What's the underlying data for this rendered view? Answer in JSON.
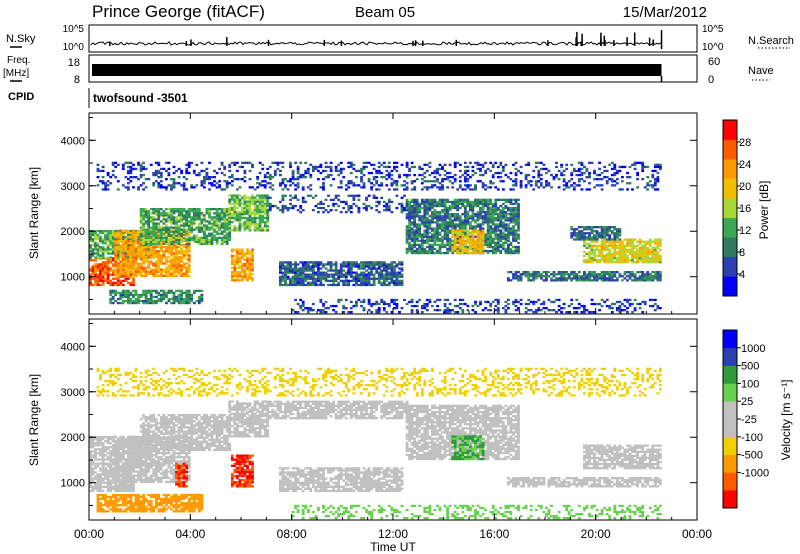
{
  "header": {
    "station": "Prince George (fitACF)",
    "beam": "Beam 05",
    "date": "15/Mar/2012"
  },
  "aux_panels": {
    "nsky": {
      "label": "N.Sky",
      "ticks": [
        "10^5",
        "10^0"
      ]
    },
    "nsearch": {
      "label": "N.Search",
      "ticks": [
        "10^5",
        "10^0"
      ]
    },
    "freq": {
      "label_top": "Freq.",
      "label_bottom": "[MHz]",
      "ticks": [
        "18",
        "8"
      ]
    },
    "nave": {
      "label": "Nave",
      "ticks": [
        "60",
        "0"
      ]
    },
    "cpid": {
      "label": "CPID",
      "value": "twofsound -3501"
    }
  },
  "colors": {
    "power_scale": [
      "#0000ff",
      "#2a3fb0",
      "#2f7a60",
      "#3aa853",
      "#a9d83a",
      "#f0c000",
      "#ff9a00",
      "#ff5a00",
      "#ff0000"
    ],
    "velocity_scale": [
      "#ff0000",
      "#ff5a00",
      "#ff9a00",
      "#f0d000",
      "#c0c0c0",
      "#c0c0c0",
      "#6ad050",
      "#2f9a3a",
      "#2a3fb0",
      "#0000ff"
    ]
  },
  "chart_data": [
    {
      "type": "heatmap",
      "name": "power",
      "xlabel": "",
      "ylabel": "Slant Range [km]",
      "xlim": [
        0,
        24
      ],
      "ylim": [
        180,
        4600
      ],
      "x_ticks": [
        "00:00",
        "04:00",
        "08:00",
        "12:00",
        "16:00",
        "20:00",
        "00:00"
      ],
      "y_ticks": [
        1000,
        2000,
        3000,
        4000
      ],
      "colorbar": {
        "label": "Power [dB]",
        "range": [
          0,
          32
        ],
        "ticks": [
          4,
          8,
          12,
          16,
          20,
          24,
          28
        ]
      },
      "data_end_hour": 22.6,
      "echo_bands": [
        {
          "t0": 0.0,
          "t1": 1.8,
          "r0": 800,
          "r1": 1400,
          "value": 27
        },
        {
          "t0": 0.0,
          "t1": 2.5,
          "r0": 1400,
          "r1": 2000,
          "value": 12
        },
        {
          "t0": 1.0,
          "t1": 4.0,
          "r0": 1000,
          "r1": 2000,
          "value": 22
        },
        {
          "t0": 0.8,
          "t1": 4.5,
          "r0": 400,
          "r1": 700,
          "value": 10
        },
        {
          "t0": 2.0,
          "t1": 5.5,
          "r0": 1700,
          "r1": 2500,
          "value": 12
        },
        {
          "t0": 5.5,
          "t1": 7.0,
          "r0": 2000,
          "r1": 2800,
          "value": 14
        },
        {
          "t0": 5.6,
          "t1": 6.4,
          "r0": 900,
          "r1": 1600,
          "value": 22
        },
        {
          "t0": 7.0,
          "t1": 12.5,
          "r0": 2400,
          "r1": 2800,
          "value": 6
        },
        {
          "t0": 7.5,
          "t1": 12.3,
          "r0": 800,
          "r1": 1300,
          "value": 7
        },
        {
          "t0": 12.5,
          "t1": 17.0,
          "r0": 1500,
          "r1": 2700,
          "value": 9
        },
        {
          "t0": 14.3,
          "t1": 15.5,
          "r0": 1500,
          "r1": 2000,
          "value": 20
        },
        {
          "t0": 16.5,
          "t1": 22.6,
          "r0": 900,
          "r1": 1100,
          "value": 8
        },
        {
          "t0": 19.5,
          "t1": 22.6,
          "r0": 1300,
          "r1": 1800,
          "value": 18
        },
        {
          "t0": 19.0,
          "t1": 21.0,
          "r0": 1800,
          "r1": 2100,
          "value": 8
        },
        {
          "t0": 8.0,
          "t1": 22.6,
          "r0": 200,
          "r1": 500,
          "value": 5
        },
        {
          "t0": 0.3,
          "t1": 22.6,
          "r0": 2900,
          "r1": 3500,
          "value": 5
        }
      ]
    },
    {
      "type": "heatmap",
      "name": "velocity",
      "xlabel": "Time UT",
      "ylabel": "Slant Range [km]",
      "xlim": [
        0,
        24
      ],
      "ylim": [
        180,
        4600
      ],
      "x_ticks": [
        "00:00",
        "04:00",
        "08:00",
        "12:00",
        "16:00",
        "20:00",
        "00:00"
      ],
      "y_ticks": [
        1000,
        2000,
        3000,
        4000
      ],
      "colorbar": {
        "label": "Velocity [m s⁻¹]",
        "tick_labels": [
          "1000",
          "500",
          "100",
          "25",
          "-25",
          "-100",
          "-500",
          "-1000"
        ]
      },
      "data_end_hour": 22.6,
      "echo_bands": [
        {
          "t0": 0.0,
          "t1": 1.8,
          "r0": 800,
          "r1": 1400,
          "value": 0
        },
        {
          "t0": 0.0,
          "t1": 2.5,
          "r0": 1400,
          "r1": 2000,
          "value": 0
        },
        {
          "t0": 1.0,
          "t1": 4.0,
          "r0": 1000,
          "r1": 2000,
          "value": 0
        },
        {
          "t0": 0.3,
          "t1": 4.5,
          "r0": 350,
          "r1": 750,
          "value": -300
        },
        {
          "t0": 2.0,
          "t1": 5.5,
          "r0": 1700,
          "r1": 2500,
          "value": 0
        },
        {
          "t0": 3.4,
          "t1": 3.9,
          "r0": 900,
          "r1": 1400,
          "value": -1000
        },
        {
          "t0": 5.6,
          "t1": 6.4,
          "r0": 900,
          "r1": 1600,
          "value": -1000
        },
        {
          "t0": 5.5,
          "t1": 7.0,
          "r0": 2000,
          "r1": 2800,
          "value": 0
        },
        {
          "t0": 7.0,
          "t1": 12.5,
          "r0": 2400,
          "r1": 2800,
          "value": 0
        },
        {
          "t0": 7.5,
          "t1": 12.3,
          "r0": 800,
          "r1": 1300,
          "value": 0
        },
        {
          "t0": 12.5,
          "t1": 17.0,
          "r0": 1500,
          "r1": 2700,
          "value": 0
        },
        {
          "t0": 14.3,
          "t1": 15.5,
          "r0": 1500,
          "r1": 2000,
          "value": 100
        },
        {
          "t0": 16.5,
          "t1": 22.6,
          "r0": 900,
          "r1": 1100,
          "value": 0
        },
        {
          "t0": 19.5,
          "t1": 22.6,
          "r0": 1300,
          "r1": 1800,
          "value": 0
        },
        {
          "t0": 8.0,
          "t1": 22.6,
          "r0": 200,
          "r1": 500,
          "value": 60
        },
        {
          "t0": 0.3,
          "t1": 22.6,
          "r0": 2900,
          "r1": 3500,
          "value": -60
        }
      ]
    }
  ]
}
